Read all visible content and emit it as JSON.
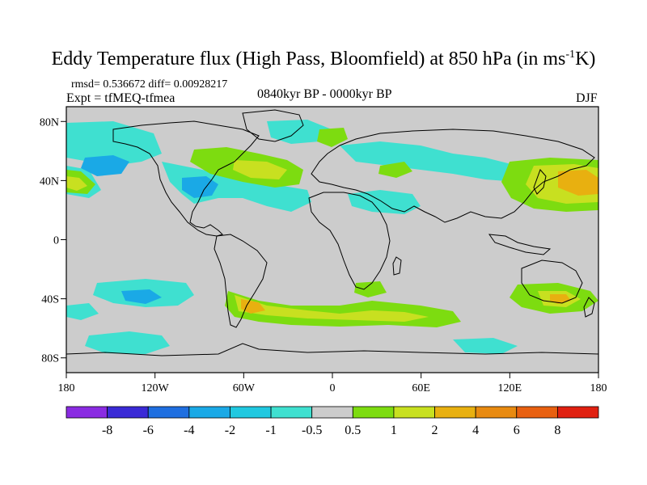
{
  "title_main": "Eddy Temperature flux (High Pass, Bloomfield) at 850 hPa (in ms",
  "title_sup": "-1",
  "title_tail": "K)",
  "stats": "rmsd= 0.536672 diff= 0.00928217",
  "experiment": "Expt = tfMEQ-tfmea",
  "period": "0840kyr BP - 0000kyr BP",
  "season": "DJF",
  "lat_ticks": [
    "80N",
    "40N",
    "0",
    "40S",
    "80S"
  ],
  "lat_values": [
    80,
    40,
    0,
    -40,
    -80
  ],
  "lon_ticks": [
    "180",
    "120W",
    "60W",
    "0",
    "60E",
    "120E",
    "180"
  ],
  "lon_values": [
    -180,
    -120,
    -60,
    0,
    60,
    120,
    180
  ],
  "colorbar": {
    "labels": [
      "-8",
      "-6",
      "-4",
      "-2",
      "-1",
      "-0.5",
      "0.5",
      "1",
      "2",
      "4",
      "6",
      "8"
    ],
    "colors": [
      "#8a2be2",
      "#3a2ad6",
      "#1f6fe0",
      "#1aa9e6",
      "#20c8e0",
      "#3fe0d0",
      "#cccccc",
      "#7ddc10",
      "#c8e020",
      "#e8b010",
      "#e88a10",
      "#e86010",
      "#e02010"
    ]
  },
  "map_colors": {
    "background": "#cccccc",
    "cyan": "#3fe0d0",
    "lightblue": "#1aa9e6",
    "green": "#7ddc10",
    "yellow": "#c8e020",
    "orange": "#e8b010"
  }
}
